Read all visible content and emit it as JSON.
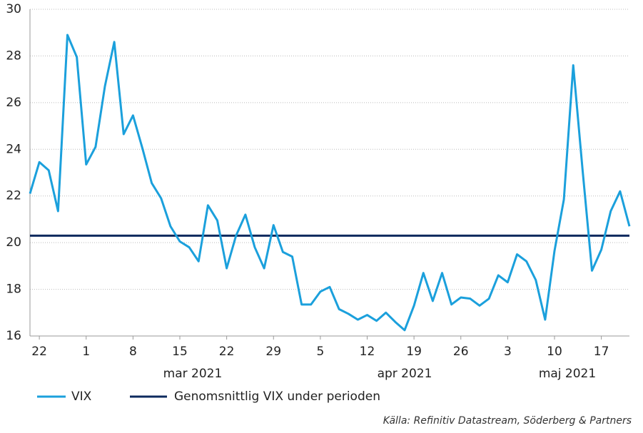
{
  "chart_data": {
    "type": "line",
    "categories": [
      null,
      "22",
      null,
      null,
      null,
      null,
      "1",
      null,
      null,
      null,
      null,
      "8",
      null,
      null,
      null,
      null,
      "15",
      null,
      null,
      null,
      null,
      "22",
      null,
      null,
      null,
      null,
      "29",
      null,
      null,
      null,
      null,
      "5",
      null,
      null,
      null,
      null,
      "12",
      null,
      null,
      null,
      null,
      "19",
      null,
      null,
      null,
      null,
      "26",
      null,
      null,
      null,
      null,
      "3",
      null,
      null,
      null,
      null,
      "10",
      null,
      null,
      null,
      null,
      "17",
      null,
      null,
      null
    ],
    "month_labels": [
      "mar 2021",
      "apr 2021",
      "maj 2021"
    ],
    "series": [
      {
        "name": "VIX",
        "color": "#1ba0dc",
        "values": [
          22.1,
          23.45,
          23.1,
          21.35,
          28.9,
          27.95,
          23.35,
          24.1,
          26.7,
          28.6,
          24.65,
          25.45,
          24.05,
          22.55,
          21.9,
          20.7,
          20.05,
          19.8,
          19.2,
          21.6,
          20.95,
          18.9,
          20.3,
          21.2,
          19.8,
          18.9,
          20.75,
          19.6,
          19.4,
          17.35,
          17.35,
          17.9,
          18.1,
          17.15,
          16.95,
          16.7,
          16.9,
          16.65,
          17.0,
          16.6,
          16.25,
          17.3,
          18.7,
          17.5,
          18.7,
          17.35,
          17.65,
          17.6,
          17.3,
          17.6,
          18.6,
          18.3,
          19.5,
          19.2,
          18.4,
          16.7,
          19.65,
          21.85,
          27.6,
          23.1,
          18.8,
          19.7,
          21.35,
          22.2,
          20.7
        ]
      }
    ],
    "reference_line": {
      "name": "Genomsnittlig VIX under perioden",
      "color": "#0d2a5e",
      "value": 20.3
    },
    "ylim": [
      16,
      30
    ],
    "yticks": [
      16,
      18,
      20,
      22,
      24,
      26,
      28,
      30
    ],
    "grid": true,
    "source": "Källa: Refinitiv Datastream, Söderberg & Partners"
  }
}
